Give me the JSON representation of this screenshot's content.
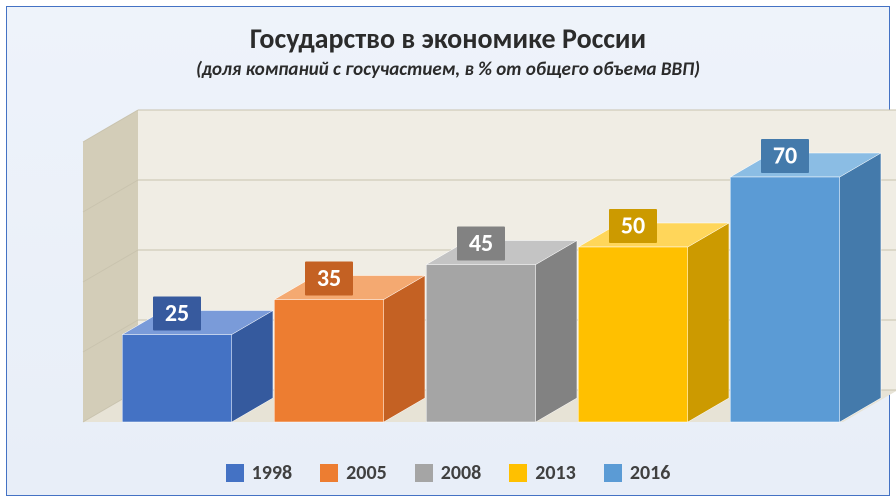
{
  "chart": {
    "type": "bar",
    "title": "Государство в экономике России",
    "subtitle": "(доля компаний с госучастием, в % от общего объема ВВП)",
    "title_fontsize": 28,
    "subtitle_fontsize": 19,
    "title_color": "#2b2b2b",
    "background_gradient": [
      "#eef3fa",
      "#e8eef8"
    ],
    "border_color": "#4472c4",
    "ylim": [
      0,
      80
    ],
    "bars": [
      {
        "label": "1998",
        "value": 25,
        "front": "#4472c4",
        "top": "#7a9bd9",
        "side": "#355a9e",
        "label_bg": "#375a9e"
      },
      {
        "label": "2005",
        "value": 35,
        "front": "#ed7d31",
        "top": "#f4a971",
        "side": "#c46123",
        "label_bg": "#c46123"
      },
      {
        "label": "2008",
        "value": 45,
        "front": "#a5a5a5",
        "top": "#c4c4c4",
        "side": "#828282",
        "label_bg": "#828282"
      },
      {
        "label": "2013",
        "value": 50,
        "front": "#ffc000",
        "top": "#ffd65a",
        "side": "#cc9a00",
        "label_bg": "#cc9a00"
      },
      {
        "label": "2016",
        "value": 70,
        "front": "#5b9bd5",
        "top": "#8bbde4",
        "side": "#447aab",
        "label_bg": "#447aab"
      }
    ],
    "wall": {
      "back_fill": "#f0ede4",
      "side_fill": "#d3cdb8",
      "floor_fill": "#e7e3d6",
      "grid_color": "#c9c3ae"
    },
    "depth_x": 55,
    "depth_y": 32,
    "label_fontsize": 24,
    "label_text_color": "#ffffff",
    "legend_fontsize": 20,
    "legend_text_color": "#404040"
  }
}
